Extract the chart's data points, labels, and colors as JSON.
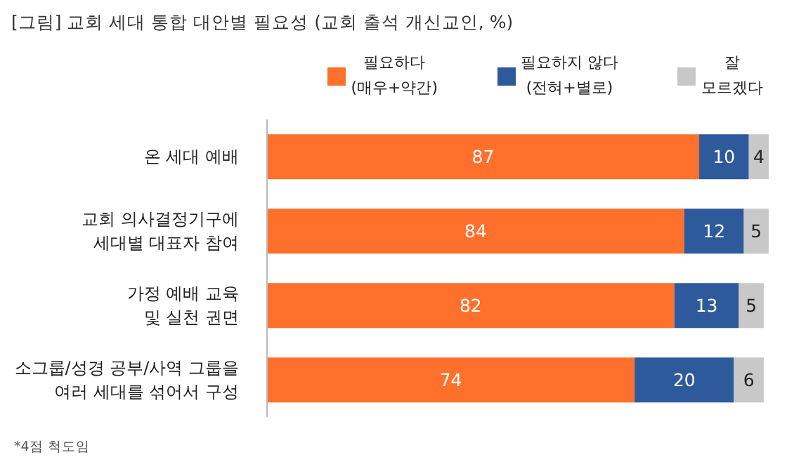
{
  "chart_data": {
    "type": "bar",
    "orientation": "horizontal",
    "stacked": true,
    "title": "[그림] 교회 세대 통합 대안별 필요성 (교회 출석 개신교인, %)",
    "categories": [
      "온 세대 예배",
      "교회 의사결정기구에\n세대별 대표자 참여",
      "가정 예배 교육\n및 실천 권면",
      "소그룹/성경 공부/사역 그룹을\n여러 세대를 섞어서 구성"
    ],
    "series": [
      {
        "name": "필요하다\n(매우+약간)",
        "color": "#ff702d",
        "values": [
          87,
          84,
          82,
          74
        ]
      },
      {
        "name": "필요하지 않다\n(전혀+별로)",
        "color": "#2e5a9b",
        "values": [
          10,
          12,
          13,
          20
        ]
      },
      {
        "name": "잘\n모르겠다",
        "color": "#c8c8c8",
        "values": [
          4,
          5,
          5,
          6
        ]
      }
    ],
    "data_labels": true,
    "legend": "top right",
    "grid": false,
    "annotations": [
      "*4점 척도임"
    ]
  }
}
